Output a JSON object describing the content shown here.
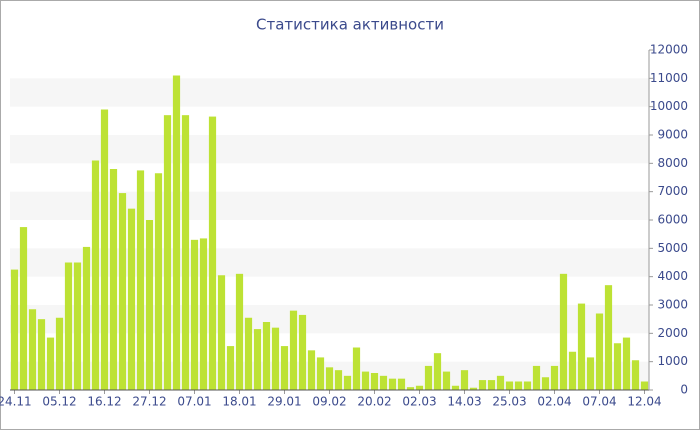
{
  "chart_data": {
    "type": "bar",
    "title": "Статистика активности",
    "categories": [
      "24.11",
      null,
      null,
      null,
      null,
      "05.12",
      null,
      null,
      null,
      null,
      "16.12",
      null,
      null,
      null,
      null,
      "27.12",
      null,
      null,
      null,
      null,
      "07.01",
      null,
      null,
      null,
      null,
      "18.01",
      null,
      null,
      null,
      null,
      "29.01",
      null,
      null,
      null,
      null,
      "09.02",
      null,
      null,
      null,
      null,
      "20.02",
      null,
      null,
      null,
      null,
      "02.03",
      null,
      null,
      null,
      null,
      "14.03",
      null,
      null,
      null,
      null,
      "25.03",
      null,
      null,
      null,
      null,
      "02.04",
      null,
      null,
      null,
      null,
      "07.04",
      null,
      null,
      null,
      null,
      "12.04"
    ],
    "values": [
      4250,
      5750,
      2850,
      2500,
      1850,
      2550,
      4500,
      4500,
      5050,
      8100,
      9900,
      7800,
      6950,
      6400,
      7750,
      6000,
      7650,
      9700,
      11100,
      9700,
      5300,
      5350,
      9650,
      4050,
      1550,
      4100,
      2550,
      2150,
      2400,
      2200,
      1550,
      2800,
      2650,
      1400,
      1150,
      800,
      700,
      500,
      1500,
      650,
      600,
      500,
      400,
      400,
      100,
      150,
      850,
      1300,
      650,
      150,
      700,
      80,
      350,
      350,
      500,
      300,
      300,
      300,
      850,
      450,
      850,
      4100,
      1350,
      3050,
      1150,
      2700,
      3700,
      1650,
      1850,
      1050,
      300
    ],
    "color": "#bde234",
    "ylim": [
      0,
      12000
    ],
    "yticks": [
      0,
      1000,
      2000,
      3000,
      4000,
      5000,
      6000,
      7000,
      8000,
      9000,
      10000,
      11000,
      12000
    ],
    "grid": true
  }
}
